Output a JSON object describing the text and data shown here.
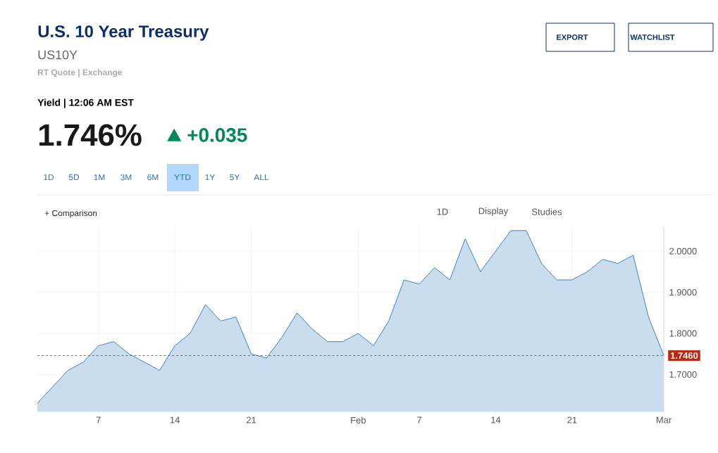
{
  "chart_data": {
    "type": "area",
    "title": "U.S. 10 Year Treasury",
    "subtitle": "US10Y",
    "annotations": [
      "RT Quote | Exchange",
      "Yield | 12:06 AM EST",
      "1.746%",
      "+0.035",
      "EXPORT",
      "WATCHLIST",
      "1D",
      "5D",
      "1M",
      "3M",
      "6M",
      "YTD",
      "1Y",
      "5Y",
      "ALL",
      "+ Comparison",
      "1D",
      "Display",
      "Studies"
    ],
    "categories": [
      null,
      null,
      null,
      null,
      "7",
      null,
      null,
      null,
      null,
      "14",
      null,
      null,
      null,
      null,
      "21",
      null,
      null,
      null,
      null,
      null,
      null,
      "Feb",
      null,
      null,
      null,
      "7",
      null,
      null,
      null,
      null,
      "14",
      null,
      null,
      null,
      null,
      "21",
      null,
      null,
      null,
      null,
      null,
      "Mar"
    ],
    "series": [
      {
        "color": "#3d85c6",
        "values": [
          1.63,
          1.67,
          1.71,
          1.73,
          1.77,
          1.78,
          1.75,
          1.73,
          1.71,
          1.77,
          1.8,
          1.87,
          1.83,
          1.84,
          1.75,
          1.74,
          1.79,
          1.85,
          1.81,
          1.78,
          1.78,
          1.8,
          1.77,
          1.83,
          1.93,
          1.92,
          1.96,
          1.93,
          2.03,
          1.95,
          2.0,
          2.05,
          2.05,
          1.97,
          1.93,
          1.93,
          1.95,
          1.98,
          1.97,
          1.99,
          1.84,
          1.746
        ]
      }
    ],
    "ylim": [
      1.61,
      2.06
    ],
    "yticks": [
      {
        "value": 1.7,
        "label": "1.7000"
      },
      {
        "value": 1.8,
        "label": "1.8000"
      },
      {
        "value": 1.9,
        "label": "1.9000"
      },
      {
        "value": 2.0,
        "label": "2.0000"
      }
    ],
    "grid": true,
    "ref_lines": [
      {
        "axis": "y",
        "value": 1.746,
        "label": "1.7460",
        "color": "#b92b12",
        "line_style": "dashed"
      }
    ]
  }
}
